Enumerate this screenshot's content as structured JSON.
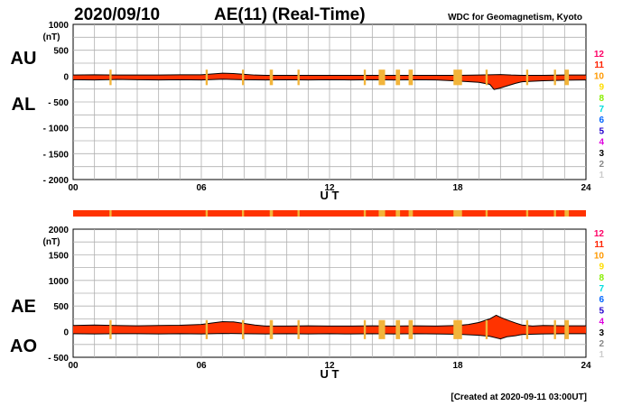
{
  "header": {
    "date": "2020/09/10",
    "title": "AE(11) (Real-Time)",
    "source": "WDC for Geomagnetism, Kyoto"
  },
  "footer": {
    "created": "[Created at 2020-09-11 03:00UT]"
  },
  "colors": {
    "fill": "#ff3300",
    "outline": "#000000",
    "grid": "#b0b0b0",
    "low_count": "#f2b43a"
  },
  "station_scale": [
    {
      "label": "12",
      "color": "#ff0066"
    },
    {
      "label": "11",
      "color": "#ff2200"
    },
    {
      "label": "10",
      "color": "#ff9900"
    },
    {
      "label": "9",
      "color": "#ffdd00"
    },
    {
      "label": "8",
      "color": "#88ee00"
    },
    {
      "label": "7",
      "color": "#00dddd"
    },
    {
      "label": "6",
      "color": "#0066ff"
    },
    {
      "label": "5",
      "color": "#2200cc"
    },
    {
      "label": "4",
      "color": "#dd00dd"
    },
    {
      "label": "3",
      "color": "#000000"
    },
    {
      "label": "2",
      "color": "#888888"
    },
    {
      "label": "1",
      "color": "#cccccc"
    }
  ],
  "chart_data": [
    {
      "type": "area",
      "panel": "upper",
      "left_labels": [
        "AU",
        "AL"
      ],
      "unit_label": "(nT)",
      "xlabel": "U T",
      "xlim": [
        0,
        24
      ],
      "xticks": [
        "00",
        "06",
        "12",
        "18",
        "24"
      ],
      "ylim": [
        -2000,
        1000
      ],
      "yticks": [
        {
          "value": 1000,
          "label": "1000"
        },
        {
          "value": 500,
          "label": "500"
        },
        {
          "value": 0,
          "label": "0"
        },
        {
          "value": -500,
          "label": "- 500"
        },
        {
          "value": -1000,
          "label": "- 1000"
        },
        {
          "value": -1500,
          "label": "- 1500"
        },
        {
          "value": -2000,
          "label": "- 2000"
        }
      ],
      "grid": true,
      "series": [
        {
          "name": "AU",
          "x": [
            0,
            1,
            2,
            3,
            4,
            5,
            6,
            6.5,
            7,
            7.5,
            8,
            8.5,
            9,
            10,
            11,
            12,
            13,
            14,
            15,
            16,
            17,
            18,
            19,
            19.5,
            20,
            20.5,
            21,
            22,
            23,
            24
          ],
          "values": [
            20,
            25,
            20,
            20,
            20,
            25,
            25,
            40,
            55,
            50,
            35,
            20,
            15,
            15,
            15,
            15,
            15,
            15,
            15,
            15,
            15,
            15,
            20,
            25,
            30,
            20,
            15,
            15,
            20,
            20
          ]
        },
        {
          "name": "AL",
          "x": [
            0,
            1,
            2,
            3,
            4,
            5,
            6,
            7,
            8,
            9,
            10,
            11,
            12,
            13,
            14,
            15,
            16,
            17,
            18,
            19,
            19.5,
            19.7,
            20,
            20.3,
            20.7,
            21,
            22,
            23,
            24
          ],
          "values": [
            -70,
            -75,
            -65,
            -70,
            -75,
            -70,
            -75,
            -60,
            -70,
            -75,
            -70,
            -75,
            -70,
            -75,
            -70,
            -75,
            -70,
            -75,
            -95,
            -120,
            -160,
            -260,
            -230,
            -190,
            -140,
            -110,
            -90,
            -80,
            -75
          ]
        }
      ]
    },
    {
      "type": "area",
      "panel": "lower",
      "left_labels": [
        "AE",
        "AO"
      ],
      "unit_label": "(nT)",
      "xlabel": "U T",
      "xlim": [
        0,
        24
      ],
      "xticks": [
        "00",
        "06",
        "12",
        "18",
        "24"
      ],
      "ylim": [
        -500,
        2000
      ],
      "yticks": [
        {
          "value": 2000,
          "label": "2000"
        },
        {
          "value": 1500,
          "label": "1500"
        },
        {
          "value": 1000,
          "label": "1000"
        },
        {
          "value": 500,
          "label": "500"
        },
        {
          "value": 0,
          "label": "0"
        },
        {
          "value": -500,
          "label": "- 500"
        }
      ],
      "grid": true,
      "series": [
        {
          "name": "AE",
          "x": [
            0,
            1,
            2,
            3,
            4,
            5,
            6,
            6.5,
            7,
            7.5,
            8,
            8.5,
            9,
            10,
            11,
            12,
            13,
            14,
            15,
            16,
            17,
            18,
            18.5,
            19,
            19.5,
            19.8,
            20,
            20.3,
            20.7,
            21,
            21.5,
            22,
            23,
            24
          ],
          "values": [
            120,
            130,
            120,
            115,
            120,
            125,
            140,
            170,
            195,
            190,
            160,
            130,
            110,
            110,
            115,
            110,
            110,
            115,
            110,
            115,
            110,
            120,
            140,
            180,
            250,
            320,
            280,
            230,
            170,
            130,
            110,
            120,
            115,
            115
          ]
        },
        {
          "name": "AO",
          "x": [
            0,
            1,
            2,
            3,
            4,
            5,
            6,
            7,
            8,
            9,
            10,
            11,
            12,
            13,
            14,
            15,
            16,
            17,
            18,
            19,
            19.5,
            20,
            20.3,
            20.7,
            21,
            22,
            23,
            24
          ],
          "values": [
            -40,
            -45,
            -40,
            -40,
            -45,
            -40,
            -45,
            -35,
            -40,
            -45,
            -40,
            -45,
            -40,
            -45,
            -40,
            -45,
            -40,
            -45,
            -50,
            -70,
            -90,
            -140,
            -100,
            -80,
            -55,
            -45,
            -40,
            -40
          ]
        }
      ],
      "station_count_bar": {
        "segments": [
          [
            1.7,
            1.8
          ],
          [
            6.2,
            6.3
          ],
          [
            7.9,
            8.0
          ],
          [
            9.2,
            9.35
          ],
          [
            10.5,
            10.6
          ],
          [
            13.6,
            13.7
          ],
          [
            14.3,
            14.6
          ],
          [
            15.1,
            15.3
          ],
          [
            15.7,
            15.9
          ],
          [
            17.8,
            18.2
          ],
          [
            19.3,
            19.4
          ],
          [
            21.2,
            21.3
          ],
          [
            22.5,
            22.6
          ],
          [
            23.0,
            23.2
          ]
        ]
      }
    }
  ]
}
